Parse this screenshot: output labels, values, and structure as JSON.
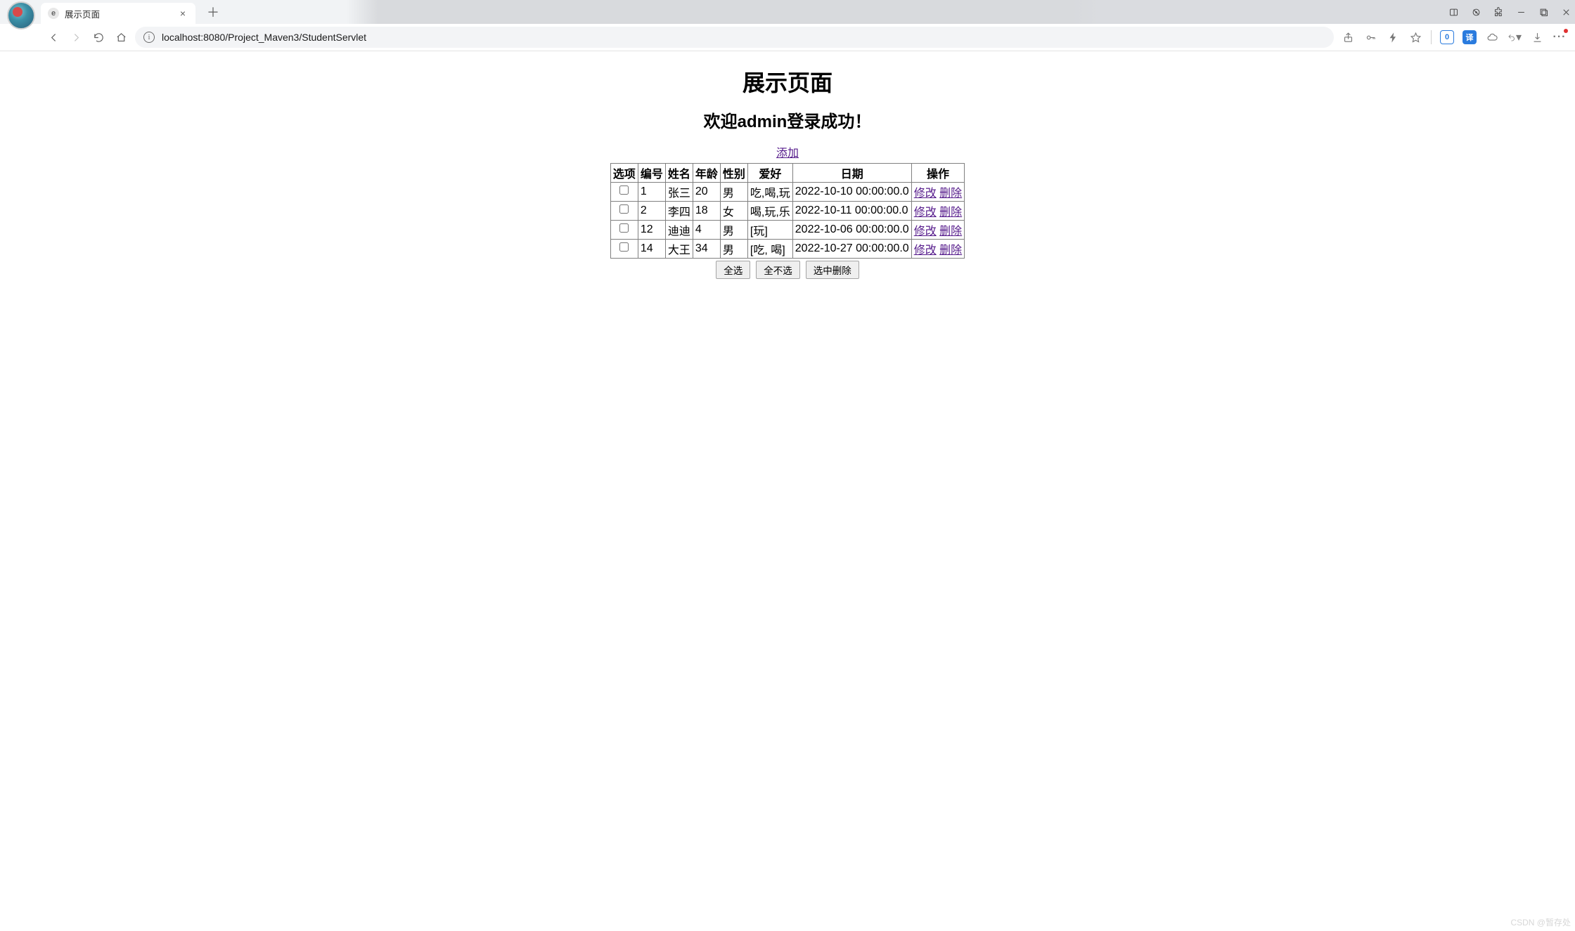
{
  "browser": {
    "tab_title": "展示页面",
    "url": "localhost:8080/Project_Maven3/StudentServlet"
  },
  "page": {
    "title": "展示页面",
    "subtitle": "欢迎admin登录成功！",
    "add_link": "添加",
    "watermark": "CSDN @暂存处"
  },
  "table": {
    "columns": [
      "选项",
      "编号",
      "姓名",
      "年龄",
      "性别",
      "爱好",
      "日期",
      "操作"
    ],
    "rows": [
      {
        "id": "1",
        "name": "张三",
        "age": "20",
        "gender": "男",
        "hobby": "吃,喝,玩",
        "date": "2022-10-10 00:00:00.0"
      },
      {
        "id": "2",
        "name": "李四",
        "age": "18",
        "gender": "女",
        "hobby": "喝,玩,乐",
        "date": "2022-10-11 00:00:00.0"
      },
      {
        "id": "12",
        "name": "迪迪",
        "age": "4",
        "gender": "男",
        "hobby": "[玩]",
        "date": "2022-10-06 00:00:00.0"
      },
      {
        "id": "14",
        "name": "大王",
        "age": "34",
        "gender": "男",
        "hobby": "[吃, 喝]",
        "date": "2022-10-27 00:00:00.0"
      }
    ],
    "edit_label": "修改",
    "delete_label": "删除"
  },
  "buttons": {
    "select_all": "全选",
    "deselect_all": "全不选",
    "delete_selected": "选中删除"
  },
  "colors": {
    "link": "#551a8b",
    "border": "#808080",
    "background": "#ffffff",
    "chrome_bg": "#f1f3f5",
    "url_bg": "#f3f4f6",
    "button_bg": "#efefef",
    "button_border": "#a5a5a5"
  }
}
